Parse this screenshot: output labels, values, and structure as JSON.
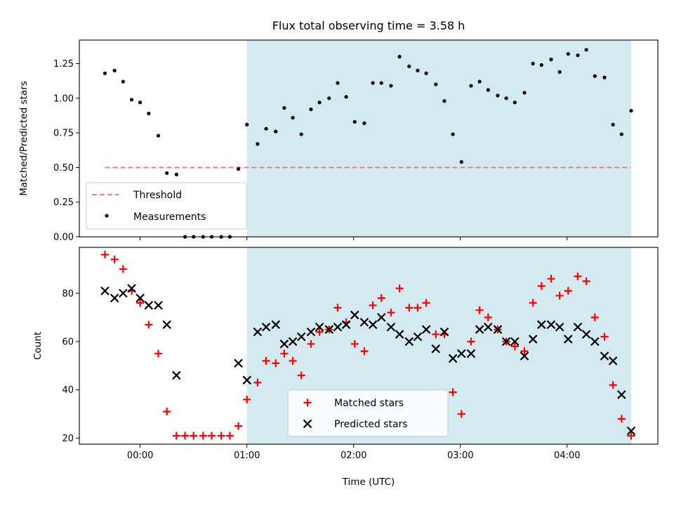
{
  "chart_data": {
    "type": "scatter",
    "title": "Flux total observing time = 3.58 h",
    "xlabel": "Time (UTC)",
    "x_unit": "hours (UTC)",
    "xticks": [
      {
        "value": 0,
        "label": "00:00"
      },
      {
        "value": 1,
        "label": "01:00"
      },
      {
        "value": 2,
        "label": "02:00"
      },
      {
        "value": 3,
        "label": "03:00"
      },
      {
        "value": 4,
        "label": "04:00"
      }
    ],
    "xlim": [
      -0.57,
      4.85
    ],
    "shaded_region": {
      "x_start": 1.0,
      "x_end": 4.6,
      "color": "#d4eaf1"
    },
    "panels": [
      {
        "id": "ratio",
        "ylabel": "Matched/Predicted stars",
        "ylim": [
          0,
          1.42
        ],
        "yticks": [
          0,
          0.25,
          0.5,
          0.75,
          1.0,
          1.25
        ],
        "ytick_labels": [
          "0.00",
          "0.25",
          "0.50",
          "0.75",
          "1.00",
          "1.25"
        ],
        "threshold": {
          "name": "Threshold",
          "y": 0.5,
          "x_start": -0.33,
          "x_end": 4.6,
          "color": "#f08080"
        },
        "legend": {
          "position": "lower-left",
          "entries": [
            "Threshold",
            "Measurements"
          ]
        },
        "series": [
          {
            "name": "Measurements",
            "color": "#000000",
            "marker": "dot",
            "x": [
              -0.33,
              -0.24,
              -0.16,
              -0.08,
              0.0,
              0.08,
              0.17,
              0.25,
              0.34,
              0.42,
              0.5,
              0.59,
              0.67,
              0.76,
              0.84,
              0.92,
              1.0,
              1.1,
              1.18,
              1.27,
              1.35,
              1.43,
              1.51,
              1.6,
              1.68,
              1.77,
              1.85,
              1.93,
              2.01,
              2.1,
              2.18,
              2.26,
              2.35,
              2.43,
              2.52,
              2.6,
              2.68,
              2.77,
              2.85,
              2.93,
              3.01,
              3.1,
              3.18,
              3.26,
              3.35,
              3.43,
              3.51,
              3.6,
              3.68,
              3.76,
              3.85,
              3.93,
              4.01,
              4.1,
              4.18,
              4.26,
              4.35,
              4.43,
              4.51,
              4.6
            ],
            "y": [
              1.18,
              1.2,
              1.12,
              0.99,
              0.97,
              0.89,
              0.73,
              0.46,
              0.45,
              0.0,
              0.0,
              0.0,
              0.0,
              0.0,
              0.0,
              0.49,
              0.81,
              0.67,
              0.78,
              0.76,
              0.93,
              0.86,
              0.74,
              0.92,
              0.97,
              1.0,
              1.11,
              1.01,
              0.83,
              0.82,
              1.11,
              1.11,
              1.09,
              1.3,
              1.23,
              1.2,
              1.18,
              1.1,
              0.98,
              0.74,
              0.54,
              1.09,
              1.12,
              1.06,
              1.02,
              1.0,
              0.97,
              1.04,
              1.25,
              1.24,
              1.28,
              1.19,
              1.32,
              1.31,
              1.35,
              1.16,
              1.15,
              0.81,
              0.74,
              0.91
            ]
          }
        ]
      },
      {
        "id": "count",
        "ylabel": "Count",
        "ylim": [
          17.5,
          99
        ],
        "yticks": [
          20,
          40,
          60,
          80
        ],
        "ytick_labels": [
          "20",
          "40",
          "60",
          "80"
        ],
        "legend": {
          "position": "lower-center",
          "entries": [
            "Matched stars",
            "Predicted stars"
          ]
        },
        "series": [
          {
            "name": "Matched stars",
            "color": "#ff0000",
            "marker": "plus",
            "x": [
              -0.33,
              -0.24,
              -0.16,
              -0.08,
              0.0,
              0.08,
              0.17,
              0.25,
              0.34,
              0.42,
              0.5,
              0.59,
              0.67,
              0.76,
              0.84,
              0.92,
              1.0,
              1.1,
              1.18,
              1.27,
              1.35,
              1.43,
              1.51,
              1.6,
              1.68,
              1.77,
              1.85,
              1.93,
              2.01,
              2.1,
              2.18,
              2.26,
              2.35,
              2.43,
              2.52,
              2.6,
              2.68,
              2.77,
              2.85,
              2.93,
              3.01,
              3.1,
              3.18,
              3.26,
              3.35,
              3.43,
              3.51,
              3.6,
              3.68,
              3.76,
              3.85,
              3.93,
              4.01,
              4.1,
              4.18,
              4.26,
              4.35,
              4.43,
              4.51,
              4.6
            ],
            "y": [
              96,
              94,
              90,
              81,
              76,
              67,
              55,
              31,
              21,
              21,
              21,
              21,
              21,
              21,
              21,
              25,
              36,
              43,
              52,
              51,
              55,
              52,
              46,
              59,
              64,
              65,
              74,
              68,
              59,
              56,
              75,
              78,
              72,
              82,
              74,
              74,
              76,
              63,
              63,
              39,
              30,
              60,
              73,
              70,
              65,
              60,
              58,
              56,
              76,
              83,
              86,
              79,
              81,
              87,
              85,
              70,
              62,
              42,
              28,
              21
            ]
          },
          {
            "name": "Predicted stars",
            "color": "#000000",
            "marker": "x",
            "x": [
              -0.33,
              -0.24,
              -0.16,
              -0.08,
              0.0,
              0.08,
              0.17,
              0.25,
              0.34,
              0.92,
              1.0,
              1.1,
              1.18,
              1.27,
              1.35,
              1.43,
              1.51,
              1.6,
              1.68,
              1.77,
              1.85,
              1.93,
              2.01,
              2.1,
              2.18,
              2.26,
              2.35,
              2.43,
              2.52,
              2.6,
              2.68,
              2.77,
              2.85,
              2.93,
              3.01,
              3.1,
              3.18,
              3.26,
              3.35,
              3.43,
              3.51,
              3.6,
              3.68,
              3.76,
              3.85,
              3.93,
              4.01,
              4.1,
              4.18,
              4.26,
              4.35,
              4.43,
              4.51,
              4.6
            ],
            "y": [
              81,
              78,
              80,
              82,
              78,
              75,
              75,
              67,
              46,
              51,
              44,
              64,
              66,
              67,
              59,
              60,
              62,
              64,
              66,
              65,
              66,
              67,
              71,
              68,
              67,
              70,
              66,
              63,
              60,
              62,
              65,
              57,
              64,
              53,
              55,
              55,
              65,
              66,
              65,
              60,
              60,
              54,
              61,
              67,
              67,
              66,
              61,
              66,
              63,
              60,
              54,
              52,
              38,
              23
            ]
          }
        ]
      }
    ]
  }
}
